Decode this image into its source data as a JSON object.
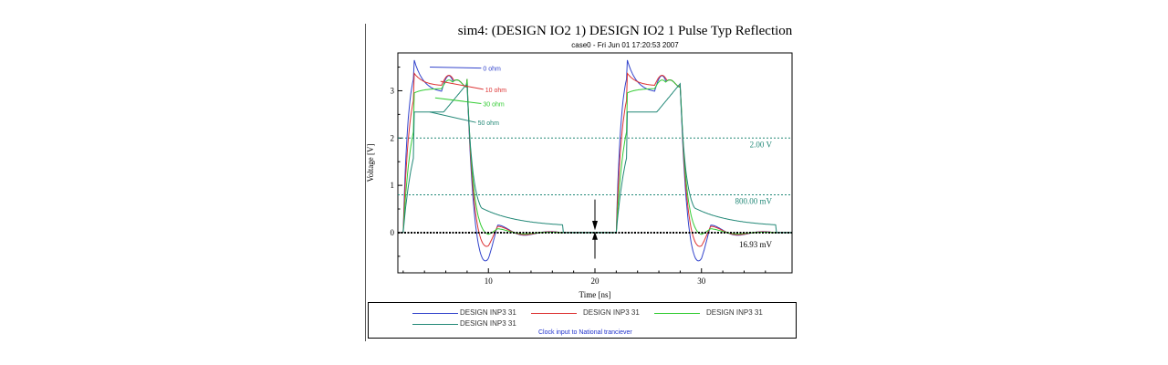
{
  "chart_data": {
    "type": "line",
    "title": "sim4: (DESIGN IO2 1) DESIGN IO2 1 Pulse Typ Reflection",
    "subtitle": "case0 - Fri Jun 01 17:20:53 2007",
    "xlabel": "Time [ns]",
    "ylabel": "Voltage [V]",
    "xlim": [
      1.5,
      38.5
    ],
    "ylim": [
      -0.85,
      3.8
    ],
    "xticks": [
      10,
      20,
      30
    ],
    "yticks": [
      0,
      1,
      2,
      3
    ],
    "grid": false,
    "series": [
      {
        "name": "DESIGN INP3 31",
        "color": "#3344cc",
        "key": "0ohm"
      },
      {
        "name": "DESIGN INP3 31",
        "color": "#dd3333",
        "key": "10ohm"
      },
      {
        "name": "DESIGN INP3 31",
        "color": "#33cc33",
        "key": "30ohm"
      },
      {
        "name": "DESIGN INP3 31",
        "color": "#228877",
        "key": "50ohm"
      }
    ],
    "annotations": [
      {
        "text": "0 ohm",
        "color": "#3344cc",
        "x": 9.5,
        "y": 3.48,
        "from": [
          4.5,
          3.5
        ]
      },
      {
        "text": "10 ohm",
        "color": "#dd3333",
        "x": 9.7,
        "y": 3.03,
        "from": [
          5.5,
          3.2
        ]
      },
      {
        "text": "30 ohm",
        "color": "#33cc33",
        "x": 9.5,
        "y": 2.73,
        "from": [
          5.0,
          2.85
        ]
      },
      {
        "text": "50 ohm",
        "color": "#228877",
        "x": 9.0,
        "y": 2.33,
        "from": [
          4.5,
          2.55
        ]
      }
    ],
    "thresholds": [
      {
        "value": 2.0,
        "label": "2.00 V",
        "color": "#228877"
      },
      {
        "value": 0.8,
        "label": "800.00 mV",
        "color": "#228877"
      }
    ],
    "zero_line": {
      "value": 0,
      "color": "#000000"
    },
    "marker": {
      "x": 20,
      "label": "16.93 mV",
      "delta_top": 0.12,
      "delta_bottom": 0.0
    }
  },
  "legend": {
    "items": [
      {
        "label": "DESIGN INP3 31",
        "color": "#3344cc"
      },
      {
        "label": "DESIGN INP3 31",
        "color": "#dd3333"
      },
      {
        "label": "DESIGN INP3 31",
        "color": "#33cc33"
      },
      {
        "label": "DESIGN INP3 31",
        "color": "#228877"
      }
    ],
    "caption": "Clock input to National tranciever"
  }
}
